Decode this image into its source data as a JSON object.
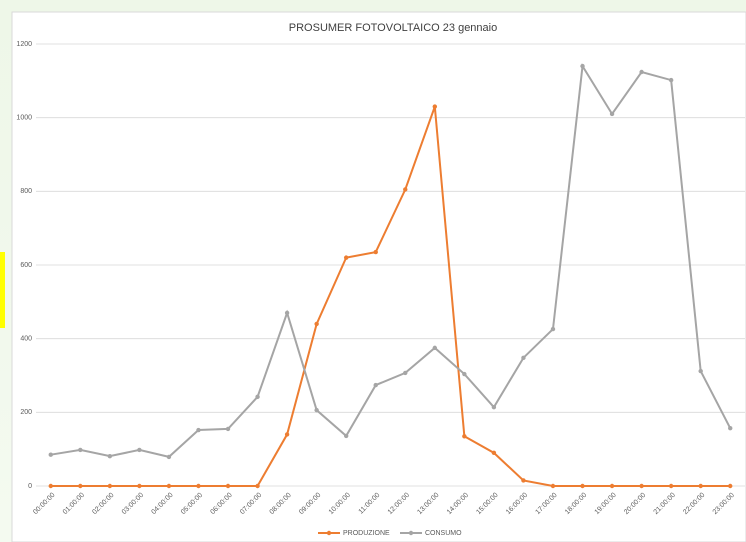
{
  "chart_data": {
    "type": "line",
    "title": "PROSUMER FOTOVOLTAICO 23 gennaio",
    "categories": [
      "00:00:00",
      "01:00:00",
      "02:00:00",
      "03:00:00",
      "04:00:00",
      "05:00:00",
      "06:00:00",
      "07:00:00",
      "08:00:00",
      "09:00:00",
      "10:00:00",
      "11:00:00",
      "12:00:00",
      "13:00:00",
      "14:00:00",
      "15:00:00",
      "16:00:00",
      "17:00:00",
      "18:00:00",
      "19:00:00",
      "20:00:00",
      "21:00:00",
      "22:00:00",
      "23:00:00"
    ],
    "series": [
      {
        "name": "PRODUZIONE",
        "color": "#ed7d31",
        "values": [
          0,
          0,
          0,
          0,
          0,
          0,
          0,
          0,
          140,
          440,
          620,
          635,
          805,
          1030,
          135,
          90,
          15,
          0,
          0,
          0,
          0,
          0,
          0,
          0
        ]
      },
      {
        "name": "CONSUMO",
        "color": "#a5a5a5",
        "values": [
          85,
          98,
          81,
          98,
          79,
          152,
          155,
          242,
          470,
          206,
          136,
          274,
          307,
          375,
          304,
          214,
          348,
          426,
          1140,
          1010,
          1124,
          1102,
          312,
          157
        ]
      }
    ],
    "ylim": [
      0,
      1200
    ],
    "yticks": [
      0,
      200,
      400,
      600,
      800,
      1000,
      1200
    ],
    "grid": true,
    "legend": "bottom"
  }
}
